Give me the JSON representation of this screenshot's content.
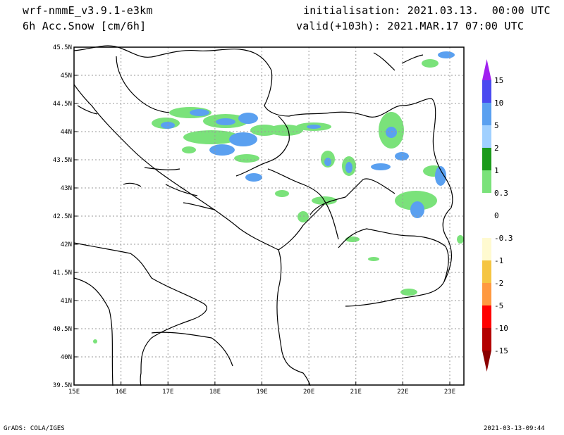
{
  "header": {
    "model": "wrf-nmmE_v3.9.1-e3km",
    "field": "6h Acc.Snow [cm/6h]",
    "init": "initialisation: 2021.03.13.  00:00 UTC",
    "valid": "valid(+103h): 2021.MAR.17 07:00 UTC"
  },
  "map": {
    "lon_range": [
      15,
      23.3
    ],
    "lat_range": [
      39.5,
      45.5
    ],
    "x_ticks": [
      "15E",
      "16E",
      "17E",
      "18E",
      "19E",
      "20E",
      "21E",
      "22E",
      "23E"
    ],
    "y_ticks": [
      "39.5N",
      "40N",
      "40.5N",
      "41N",
      "41.5N",
      "42N",
      "42.5N",
      "43N",
      "43.5N",
      "44N",
      "44.5N",
      "45N",
      "45.5N"
    ],
    "grid": true
  },
  "legend": {
    "levels": [
      "15",
      "10",
      "5",
      "2",
      "1",
      "0.3",
      "0",
      "-0.3",
      "-1",
      "-2",
      "-5",
      "-10",
      "-15"
    ],
    "colors": [
      "#a020f0",
      "#4a4af0",
      "#5aa0f0",
      "#a0d0ff",
      "#1a9a1a",
      "#7ae27a",
      "#ffffff",
      "#ffffff",
      "#fffad0",
      "#f5c542",
      "#ff9940",
      "#ff0000",
      "#b40000",
      "#8b0000"
    ]
  },
  "footer": {
    "left": "GrADS: COLA/IGES",
    "right": "2021-03-13-09:44"
  }
}
